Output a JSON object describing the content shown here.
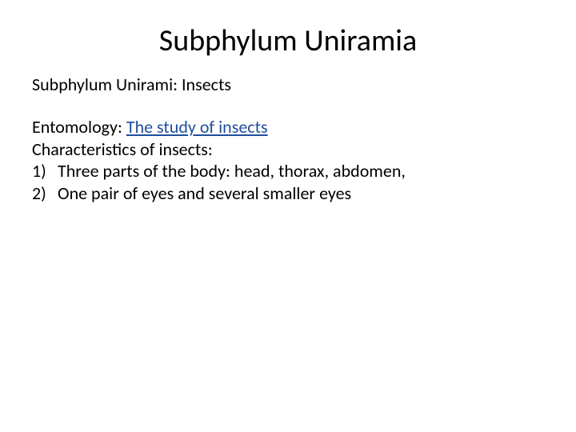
{
  "slide": {
    "title": "Subphylum Uniramia",
    "subtitle": "Subphylum Unirami: Insects",
    "entomology": {
      "label": "Entomology: ",
      "definition": "The study of insects"
    },
    "characteristics_heading": "Characteristics of insects:",
    "list": [
      {
        "num": "1)",
        "text": "Three parts of the body: head, thorax, abdomen,"
      },
      {
        "num": "2)",
        "text": "One pair of eyes and several smaller eyes"
      }
    ],
    "colors": {
      "background": "#ffffff",
      "text": "#000000",
      "link": "#1f4e9c"
    },
    "typography": {
      "title_fontsize": 38,
      "body_fontsize": 22,
      "font_family": "Calibri"
    }
  }
}
